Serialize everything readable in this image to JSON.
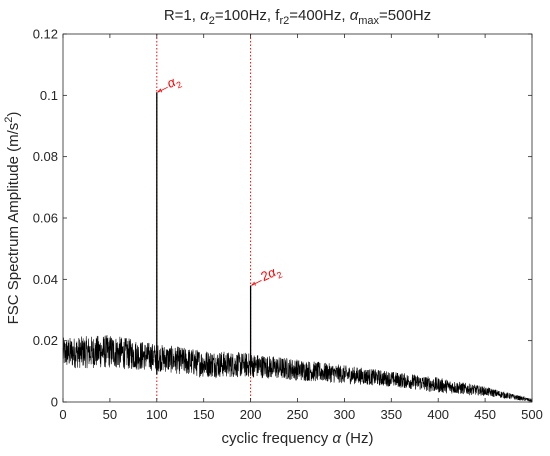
{
  "chart_data": {
    "type": "line",
    "title": "R=1, α2=100Hz, fr2=400Hz, αmax=500Hz",
    "title_parts": [
      {
        "t": "R=1, "
      },
      {
        "t": "α",
        "s": "italic"
      },
      {
        "t": "2",
        "sub": true
      },
      {
        "t": "=100Hz, f"
      },
      {
        "t": "r2",
        "sub": true
      },
      {
        "t": "=400Hz, "
      },
      {
        "t": "α",
        "s": "italic"
      },
      {
        "t": "max",
        "sub": true
      },
      {
        "t": "=500Hz"
      }
    ],
    "xlabel": "cyclic frequency α (Hz)",
    "xlabel_parts": [
      {
        "t": "cyclic frequency "
      },
      {
        "t": "α",
        "s": "italic"
      },
      {
        "t": " (Hz)"
      }
    ],
    "ylabel": "FSC Spectrum Amplitude (m/s2)",
    "ylabel_parts": [
      {
        "t": "FSC Spectrum Amplitude (m/s"
      },
      {
        "t": "2",
        "sup": true
      },
      {
        "t": ")"
      }
    ],
    "xlim": [
      0,
      500
    ],
    "ylim": [
      0,
      0.12
    ],
    "xticks": [
      0,
      50,
      100,
      150,
      200,
      250,
      300,
      350,
      400,
      450,
      500
    ],
    "xtick_labels": [
      "0",
      "50",
      "100",
      "150",
      "200",
      "250",
      "300",
      "350",
      "400",
      "450",
      "500"
    ],
    "yticks": [
      0,
      0.02,
      0.04,
      0.06,
      0.08,
      0.1,
      0.12
    ],
    "ytick_labels": [
      "0",
      "0.02",
      "0.04",
      "0.06",
      "0.08",
      "0.1",
      "0.12"
    ],
    "grid": false,
    "series": [
      {
        "color": "#000000",
        "noise_band": [
          {
            "x": 0,
            "low": 0.011,
            "high": 0.021
          },
          {
            "x": 50,
            "low": 0.011,
            "high": 0.022
          },
          {
            "x": 100,
            "low": 0.01,
            "high": 0.019
          },
          {
            "x": 150,
            "low": 0.008,
            "high": 0.017
          },
          {
            "x": 200,
            "low": 0.008,
            "high": 0.016
          },
          {
            "x": 250,
            "low": 0.007,
            "high": 0.014
          },
          {
            "x": 300,
            "low": 0.006,
            "high": 0.012
          },
          {
            "x": 350,
            "low": 0.005,
            "high": 0.01
          },
          {
            "x": 400,
            "low": 0.003,
            "high": 0.008
          },
          {
            "x": 450,
            "low": 0.002,
            "high": 0.005
          },
          {
            "x": 500,
            "low": 0.0,
            "high": 0.001
          }
        ],
        "peaks": [
          {
            "x": 100,
            "y": 0.101
          },
          {
            "x": 200,
            "y": 0.038
          }
        ]
      }
    ],
    "reference_lines": [
      {
        "x": 100,
        "color": "#ff0000",
        "style": "dotted"
      },
      {
        "x": 200,
        "color": "#ff0000",
        "style": "dotted"
      }
    ],
    "annotations": [
      {
        "x": 100,
        "y": 0.101,
        "text": "α2",
        "parts": [
          {
            "t": "α",
            "s": "italic"
          },
          {
            "t": "2",
            "sub": true
          }
        ],
        "color": "#ff0000"
      },
      {
        "x": 200,
        "y": 0.038,
        "text": "2α2",
        "parts": [
          {
            "t": "2"
          },
          {
            "t": "α",
            "s": "italic"
          },
          {
            "t": "2",
            "sub": true
          }
        ],
        "color": "#ff0000"
      }
    ]
  }
}
